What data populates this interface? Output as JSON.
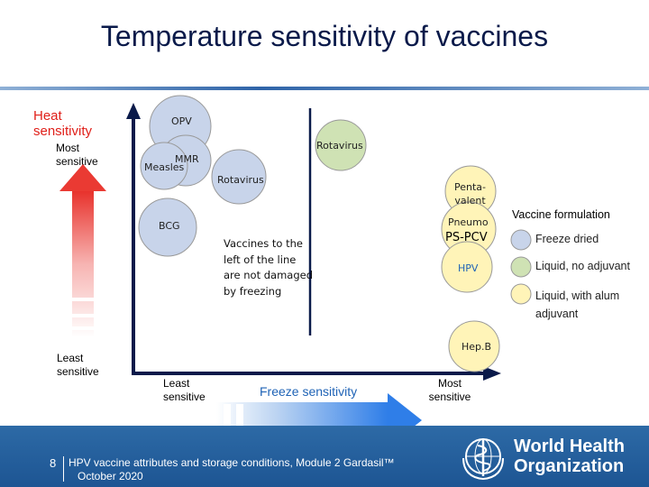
{
  "title": "Temperature sensitivity of vaccines",
  "heat_axis": {
    "label_line1": "Heat",
    "label_line2": "sensitivity",
    "top": "Most sensitive",
    "bottom": "Least sensitive"
  },
  "freeze_axis": {
    "left": "Least sensitive",
    "label": "Freeze sensitivity",
    "right": "Most sensitive"
  },
  "vaccines": {
    "opv": "OPV",
    "mmr": "MMR",
    "measles": "Measles",
    "rotavirus_liquid": "Rotavirus",
    "rotavirus_dried": "Rotavirus",
    "bcg": "BCG",
    "pentavalent_1": "Penta-",
    "pentavalent_2": "valent",
    "pneumo": "Pneumo",
    "pcv": "PS-PCV",
    "hpv": "HPV",
    "hepb": "Hep.B"
  },
  "note": "Vaccines to the left of the line are not damaged by freezing",
  "legend": {
    "title": "Vaccine formulation",
    "items": [
      {
        "label": "Freeze dried",
        "color": "#c8d4ea"
      },
      {
        "label": "Liquid, no adjuvant",
        "color": "#cfe2b4"
      },
      {
        "label": "Liquid, with alum adjuvant",
        "color": "#fff4b8"
      }
    ]
  },
  "colors": {
    "freeze_dried": "#c8d4ea",
    "liquid": "#cfe2b4",
    "alum": "#fff4b8",
    "footer": "#1f5a98"
  },
  "footer": {
    "page": "8",
    "text": "HPV vaccine attributes and storage conditions, Module 2 Gardasil™",
    "date": "October 2020",
    "org_line1": "World Health",
    "org_line2": "Organization"
  }
}
